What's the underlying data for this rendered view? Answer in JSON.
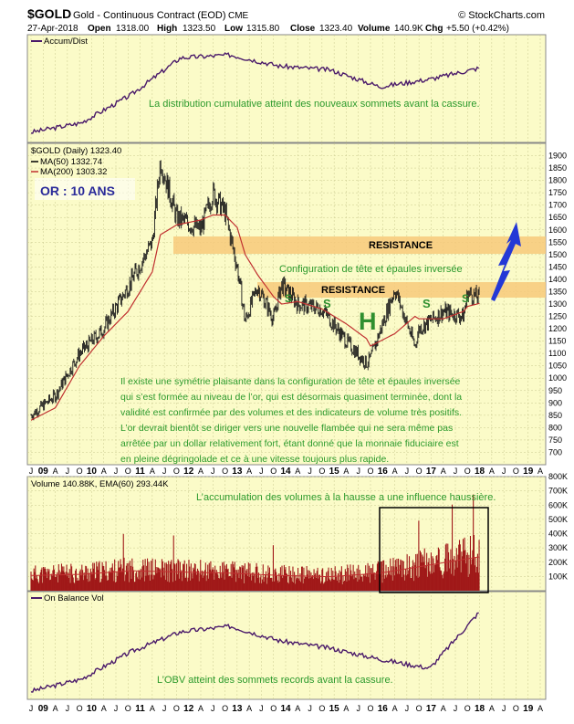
{
  "header": {
    "symbol": "$GOLD",
    "name": "Gold - Continuous Contract (EOD)",
    "exchange": "CME",
    "source": "© StockCharts.com",
    "date": "27-Apr-2018",
    "open_label": "Open",
    "open": "1318.00",
    "high_label": "High",
    "high": "1323.50",
    "low_label": "Low",
    "low": "1315.80",
    "close_label": "Close",
    "close": "1323.40",
    "volume_label": "Volume",
    "volume": "140.9K",
    "chg_label": "Chg",
    "chg": "+5.50 (+0.42%)"
  },
  "colors": {
    "panel_bg": "#fbfbc8",
    "grid": "#c9c98e",
    "price": "#1a1a1a",
    "ma": "#c03030",
    "acc": "#4a1a6a",
    "volume": "#a01818",
    "annotation_green": "#2c9a2c",
    "annotation_blue": "#2a2a9a",
    "resistance_band": "#f7c97a",
    "arrow": "#2438d6",
    "pattern_green": "#2f8f2f"
  },
  "chart_data": [
    {
      "type": "line",
      "panel": "accumulation-distribution",
      "title": "Accum/Dist",
      "x": [
        "2009",
        "2010",
        "2011",
        "2012",
        "2013",
        "2014",
        "2015",
        "2016",
        "2017",
        "2018"
      ],
      "series": [
        {
          "name": "Accum/Dist",
          "values": [
            0.05,
            0.15,
            0.45,
            0.85,
            0.88,
            0.76,
            0.72,
            0.54,
            0.62,
            0.74
          ]
        }
      ],
      "annotation": "La distribution cumulative atteint des nouveaux sommets avant la cassure."
    },
    {
      "type": "line",
      "panel": "price",
      "legend": [
        "$GOLD (Daily) 1323.40",
        "MA(50) 1332.74",
        "MA(200) 1303.32"
      ],
      "ylim": [
        650,
        1950
      ],
      "yticks": [
        "1900",
        "1850",
        "1800",
        "1750",
        "1700",
        "1650",
        "1600",
        "1550",
        "1500",
        "1450",
        "1400",
        "1350",
        "1300",
        "1250",
        "1200",
        "1150",
        "1100",
        "1050",
        "1000",
        "950",
        "900",
        "850",
        "800",
        "750",
        "700"
      ],
      "x": [
        "2009-01",
        "2009-07",
        "2010-01",
        "2010-07",
        "2011-01",
        "2011-07",
        "2011-09",
        "2012-01",
        "2012-07",
        "2012-10",
        "2013-01",
        "2013-04",
        "2013-06",
        "2013-09",
        "2014-01",
        "2014-03",
        "2014-07",
        "2015-01",
        "2015-07",
        "2015-12",
        "2016-01",
        "2016-07",
        "2016-12",
        "2017-01",
        "2017-07",
        "2017-12",
        "2018-01",
        "2018-04"
      ],
      "series": [
        {
          "name": "$GOLD",
          "values": [
            850,
            930,
            1100,
            1200,
            1370,
            1550,
            1880,
            1650,
            1600,
            1750,
            1670,
            1450,
            1230,
            1370,
            1240,
            1380,
            1300,
            1280,
            1150,
            1060,
            1080,
            1360,
            1130,
            1200,
            1270,
            1250,
            1345,
            1323
          ]
        },
        {
          "name": "MA(200)",
          "values": [
            830,
            880,
            1050,
            1170,
            1270,
            1430,
            1580,
            1620,
            1640,
            1660,
            1660,
            1610,
            1500,
            1420,
            1330,
            1300,
            1310,
            1280,
            1220,
            1160,
            1130,
            1180,
            1250,
            1240,
            1240,
            1270,
            1290,
            1303
          ]
        }
      ],
      "panel_title": "OR : 10 ANS",
      "resistance_label": "RESISTANCE",
      "resistance_levels": [
        [
          1525,
          1575
        ],
        [
          1340,
          1380
        ]
      ],
      "pattern_label": "Configuration de tête et épaules inversée",
      "head_label": "H",
      "shoulder_label": "S",
      "commentary": [
        "Il existe une symétrie plaisante dans la configuration de tête et épaules inversée",
        "qui s’est formée au niveau de l’or, qui est désormais quasiment terminée, dont la",
        "validité est confirmée par des volumes et des indicateurs de volume très positifs.",
        "L’or devrait bientôt se diriger vers une nouvelle flambée qui ne sera même pas",
        "arrêtée par un dollar relativement fort, étant donné que la monnaie fiduciaire est",
        "en pleine dégringolade et ce à une vitesse toujours plus rapide."
      ]
    },
    {
      "type": "bar",
      "panel": "volume",
      "legend": "Volume 140.88K, EMA(60) 293.44K",
      "ylim": [
        0,
        800
      ],
      "yticks": [
        "800K",
        "700K",
        "600K",
        "500K",
        "400K",
        "300K",
        "200K",
        "100K"
      ],
      "x": [
        "2009",
        "2010",
        "2011",
        "2012",
        "2013",
        "2014",
        "2015",
        "2016",
        "2017",
        "2018"
      ],
      "values": [
        130,
        140,
        170,
        160,
        150,
        130,
        120,
        150,
        220,
        290
      ],
      "annotation": "L’accumulation des volumes à la hausse a une influence haussière."
    },
    {
      "type": "line",
      "panel": "on-balance-volume",
      "title": "On Balance Vol",
      "x": [
        "2009",
        "2010",
        "2011",
        "2012",
        "2013",
        "2014",
        "2015",
        "2016",
        "2017",
        "2018"
      ],
      "series": [
        {
          "name": "On Balance Vol",
          "values": [
            0.05,
            0.18,
            0.48,
            0.7,
            0.76,
            0.6,
            0.52,
            0.4,
            0.3,
            0.92
          ]
        }
      ],
      "annotation": "L’OBV atteint des sommets records avant la cassure."
    }
  ],
  "xaxis": {
    "labels": [
      "J",
      "09",
      "A",
      "J",
      "O",
      "10",
      "A",
      "J",
      "O",
      "11",
      "A",
      "J",
      "O",
      "12",
      "A",
      "J",
      "O",
      "13",
      "A",
      "J",
      "O",
      "14",
      "A",
      "J",
      "O",
      "15",
      "A",
      "J",
      "O",
      "16",
      "A",
      "J",
      "O",
      "17",
      "A",
      "J",
      "O",
      "18",
      "A",
      "J",
      "O",
      "19",
      "A"
    ]
  }
}
